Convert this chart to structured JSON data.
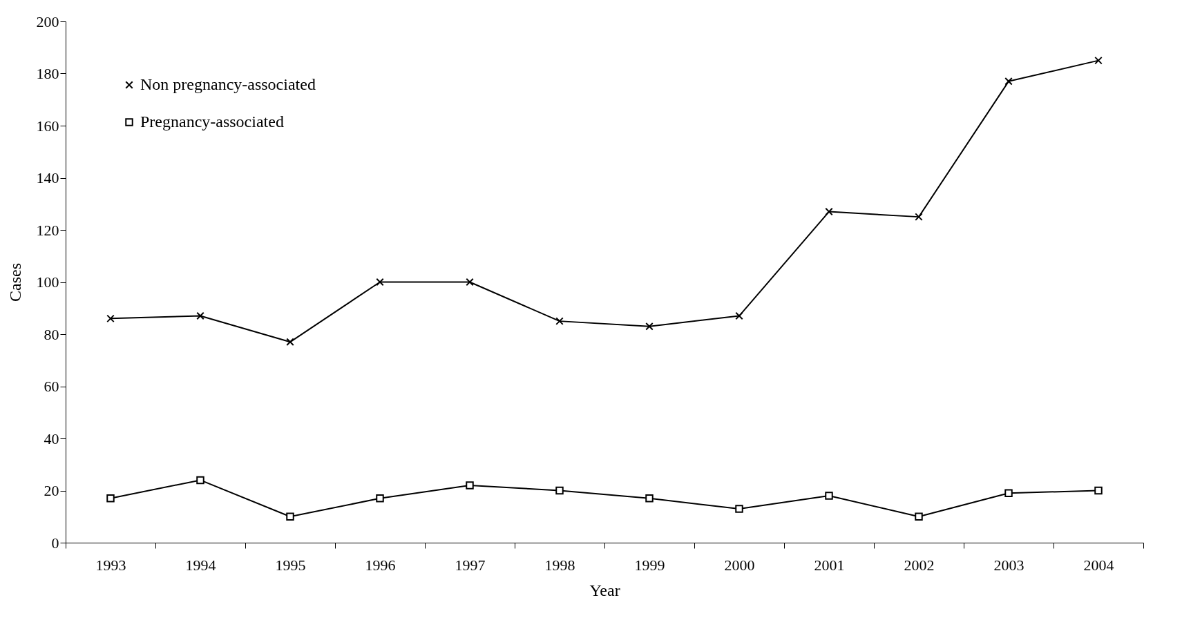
{
  "chart_data": {
    "type": "line",
    "xlabel": "Year",
    "ylabel": "Cases",
    "categories": [
      "1993",
      "1994",
      "1995",
      "1996",
      "1997",
      "1998",
      "1999",
      "2000",
      "2001",
      "2002",
      "2003",
      "2004"
    ],
    "series": [
      {
        "name": "Non pregnancy-associated",
        "color": "#000000",
        "marker": "cross",
        "values": [
          86,
          87,
          77,
          100,
          100,
          85,
          83,
          87,
          127,
          125,
          177,
          185
        ]
      },
      {
        "name": "Pregnancy-associated",
        "color": "#000000",
        "marker": "square",
        "values": [
          17,
          24,
          10,
          17,
          22,
          20,
          17,
          13,
          18,
          10,
          19,
          20
        ]
      }
    ],
    "ylim": [
      0,
      200
    ],
    "yticks": [
      0,
      20,
      40,
      60,
      80,
      100,
      120,
      140,
      160,
      180,
      200
    ],
    "grid": false,
    "legend": "top left",
    "line_style": "solid"
  }
}
